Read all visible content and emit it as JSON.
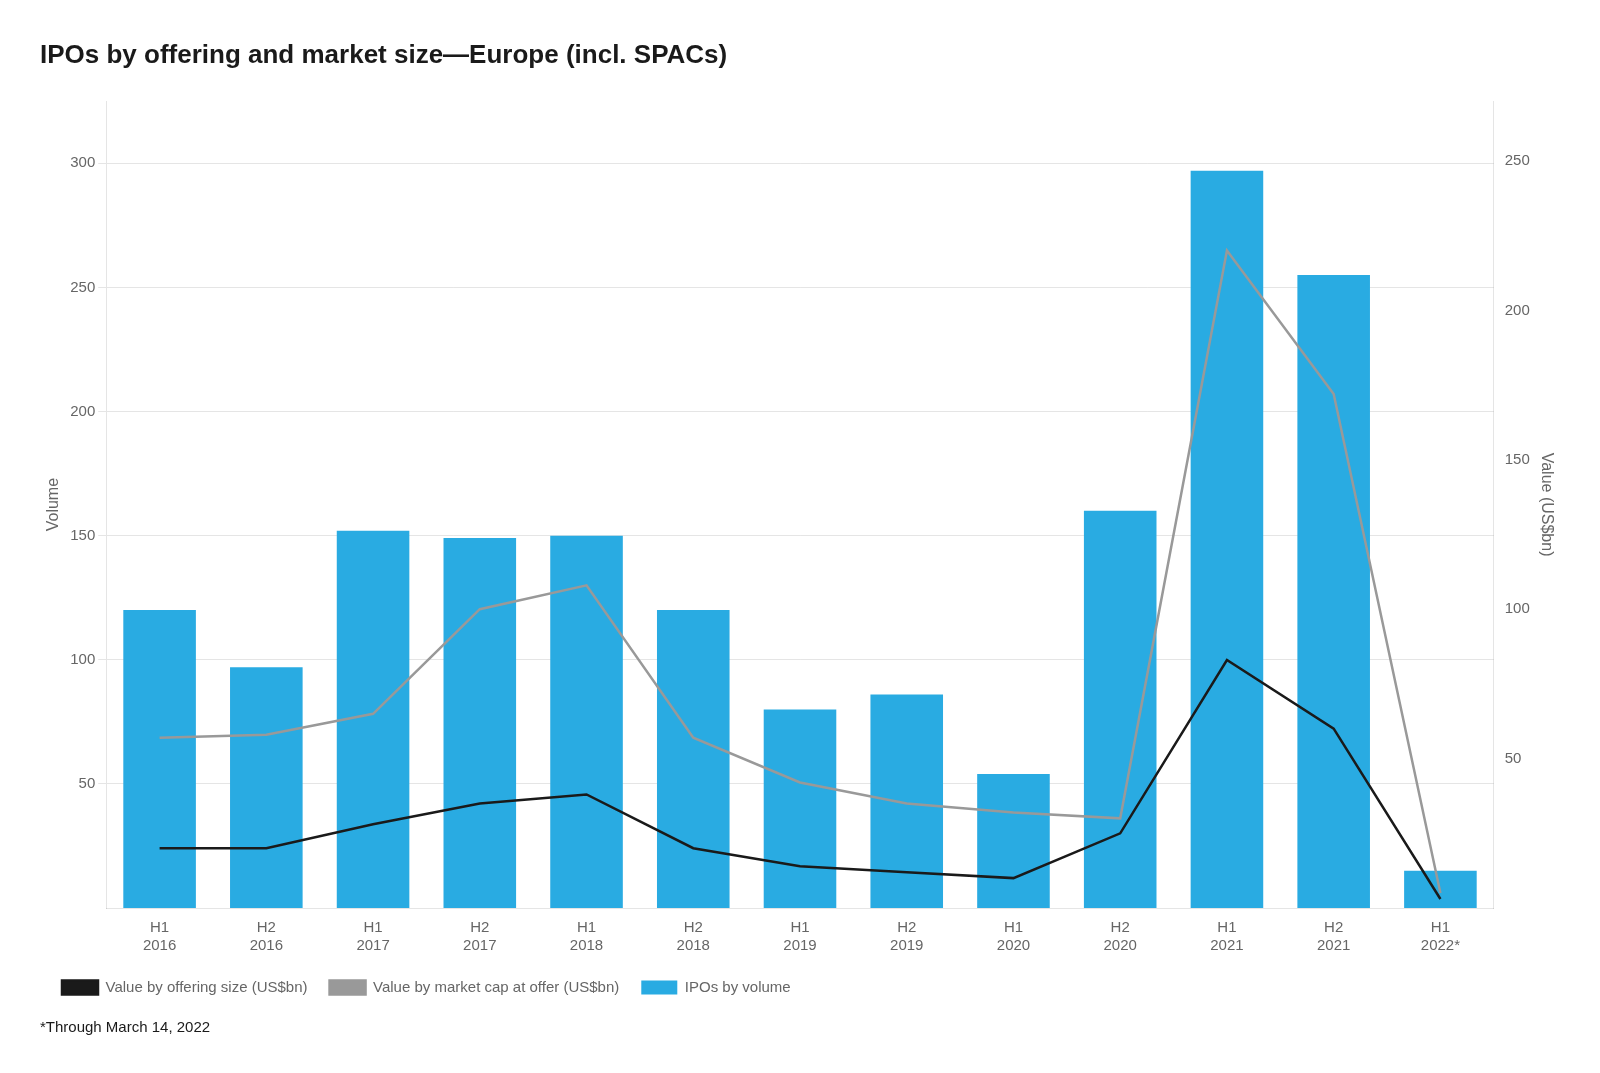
{
  "chart_data": {
    "type": "bar",
    "title": "IPOs by offering and market size—Europe (incl. SPACs)",
    "subtitle": "*Through March 14, 2022",
    "categories": [
      "H1\n2016",
      "H2\n2016",
      "H1\n2017",
      "H2\n2017",
      "H1\n2018",
      "H2\n2018",
      "H1\n2019",
      "H2\n2019",
      "H1\n2020",
      "H2\n2020",
      "H1\n2021",
      "H2\n2021",
      "H1\n2022*"
    ],
    "series": [
      {
        "name": "IPOs by volume",
        "type": "bar",
        "color": "#29abe2",
        "values": [
          120,
          97,
          152,
          149,
          150,
          120,
          80,
          86,
          54,
          160,
          297,
          255,
          15
        ]
      },
      {
        "name": "Value by offering size (US$bn)",
        "type": "line",
        "axis": "y2",
        "color": "#1a1a1a",
        "values": [
          20,
          20,
          28,
          35,
          38,
          20,
          14,
          12,
          10,
          25,
          83,
          60,
          3
        ]
      },
      {
        "name": "Value by market cap at offer (US$bn)",
        "type": "line",
        "axis": "y2",
        "color": "#999999",
        "values": [
          57,
          58,
          65,
          100,
          108,
          57,
          42,
          35,
          32,
          30,
          220,
          172,
          5
        ]
      }
    ],
    "ylabel": "Volume",
    "y2label": "Value (US$bn)",
    "ylim": [
      0,
      325
    ],
    "yticks": [
      50,
      100,
      150,
      200,
      250,
      300
    ],
    "y2lim": [
      0,
      270
    ],
    "y2ticks": [
      50,
      100,
      150,
      200,
      250
    ],
    "grid": true,
    "legend": "bottom"
  }
}
